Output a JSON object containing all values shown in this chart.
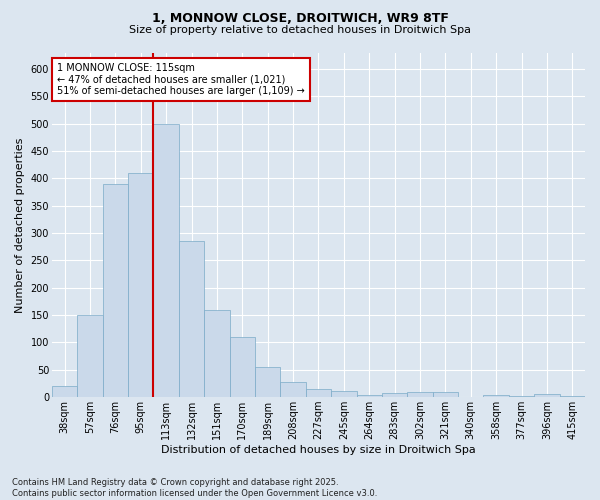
{
  "title_line1": "1, MONNOW CLOSE, DROITWICH, WR9 8TF",
  "title_line2": "Size of property relative to detached houses in Droitwich Spa",
  "xlabel": "Distribution of detached houses by size in Droitwich Spa",
  "ylabel": "Number of detached properties",
  "categories": [
    "38sqm",
    "57sqm",
    "76sqm",
    "95sqm",
    "113sqm",
    "132sqm",
    "151sqm",
    "170sqm",
    "189sqm",
    "208sqm",
    "227sqm",
    "245sqm",
    "264sqm",
    "283sqm",
    "302sqm",
    "321sqm",
    "340sqm",
    "358sqm",
    "377sqm",
    "396sqm",
    "415sqm"
  ],
  "values": [
    20,
    150,
    390,
    410,
    500,
    285,
    160,
    110,
    55,
    28,
    15,
    12,
    4,
    7,
    9,
    9,
    0,
    4,
    2,
    5,
    3
  ],
  "bar_color": "#cad9ea",
  "bar_edge_color": "#7aaac8",
  "vline_color": "#cc0000",
  "annotation_title": "1 MONNOW CLOSE: 115sqm",
  "annotation_line2": "← 47% of detached houses are smaller (1,021)",
  "annotation_line3": "51% of semi-detached houses are larger (1,109) →",
  "annotation_box_edgecolor": "#cc0000",
  "ylim": [
    0,
    630
  ],
  "yticks": [
    0,
    50,
    100,
    150,
    200,
    250,
    300,
    350,
    400,
    450,
    500,
    550,
    600
  ],
  "footer_line1": "Contains HM Land Registry data © Crown copyright and database right 2025.",
  "footer_line2": "Contains public sector information licensed under the Open Government Licence v3.0.",
  "bg_color": "#dce6f0",
  "plot_bg_color": "#dce6f0",
  "title1_fontsize": 9,
  "title2_fontsize": 8,
  "tick_fontsize": 7,
  "label_fontsize": 8,
  "footer_fontsize": 6
}
